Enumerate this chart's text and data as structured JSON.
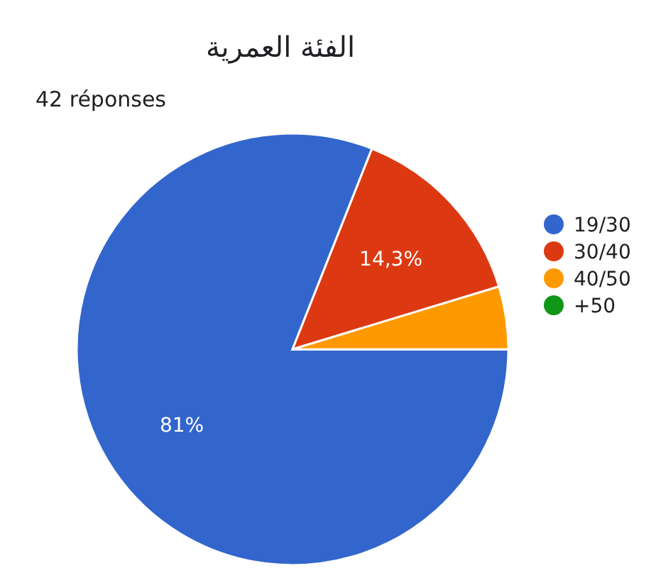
{
  "chart_data": {
    "type": "pie",
    "title": "الفئة العمرية",
    "subtitle": "42 réponses",
    "categories": [
      "19/30",
      "30/40",
      "40/50",
      "+50"
    ],
    "values": [
      81,
      14.3,
      4.7,
      0
    ],
    "colors": [
      "#3366cc",
      "#dc3912",
      "#ff9900",
      "#109618"
    ],
    "value_labels": [
      "81%",
      "14,3%",
      null,
      null
    ],
    "legend": "right"
  }
}
